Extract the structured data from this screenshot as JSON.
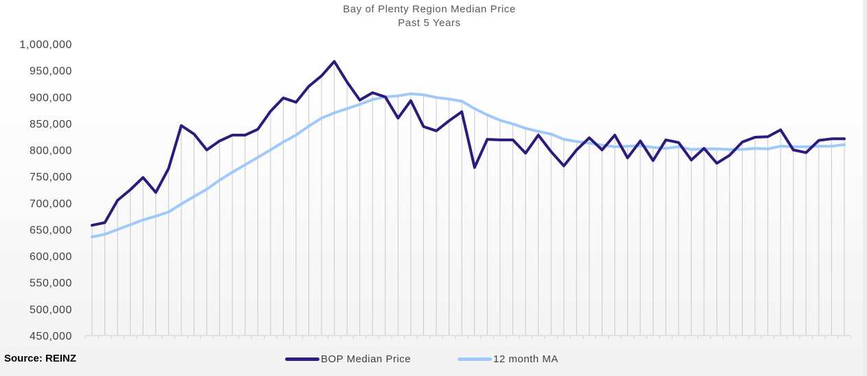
{
  "chart_data": {
    "type": "line",
    "title": "Bay of Plenty Region Median Price",
    "subtitle": "Past 5 Years",
    "source": "Source: REINZ",
    "ylim": [
      450000,
      1000000
    ],
    "yticks": [
      "1,000,000",
      "950,000",
      "900,000",
      "850,000",
      "800,000",
      "750,000",
      "700,000",
      "650,000",
      "600,000",
      "550,000",
      "500,000",
      "450,000"
    ],
    "yticks_values": [
      1000000,
      950000,
      900000,
      850000,
      800000,
      750000,
      700000,
      650000,
      600000,
      550000,
      500000,
      450000
    ],
    "grid": "vertical drop lines per month",
    "legend_position": "bottom",
    "series": [
      {
        "name": "BOP Median Price",
        "color": "#2e1a7a",
        "values": [
          658000,
          663000,
          705000,
          725000,
          748000,
          720000,
          765000,
          846000,
          830000,
          800000,
          817000,
          828000,
          828000,
          839000,
          873000,
          898000,
          890000,
          920000,
          940000,
          967000,
          928000,
          894000,
          908000,
          900000,
          860000,
          893000,
          844000,
          836000,
          855000,
          872000,
          767000,
          820000,
          819000,
          819000,
          794000,
          828000,
          797000,
          770000,
          800000,
          823000,
          800000,
          828000,
          785000,
          817000,
          780000,
          819000,
          814000,
          781000,
          803000,
          775000,
          790000,
          815000,
          824000,
          825000,
          838000,
          800000,
          795000,
          818000,
          821000,
          821000
        ]
      },
      {
        "name": "12 month MA",
        "color": "#9ec9fa",
        "values": [
          636000,
          641000,
          650000,
          659000,
          668000,
          675000,
          683000,
          698000,
          712000,
          726000,
          743000,
          758000,
          772000,
          786000,
          800000,
          815000,
          828000,
          845000,
          860000,
          870000,
          878000,
          886000,
          895000,
          900000,
          902000,
          906000,
          904000,
          899000,
          896000,
          892000,
          878000,
          866000,
          856000,
          849000,
          841000,
          835000,
          830000,
          820000,
          816000,
          813000,
          809000,
          806000,
          807000,
          808000,
          805000,
          803000,
          806000,
          801000,
          802000,
          802000,
          801000,
          801000,
          803000,
          802000,
          807000,
          806000,
          806000,
          807000,
          807000,
          810000
        ]
      }
    ]
  }
}
